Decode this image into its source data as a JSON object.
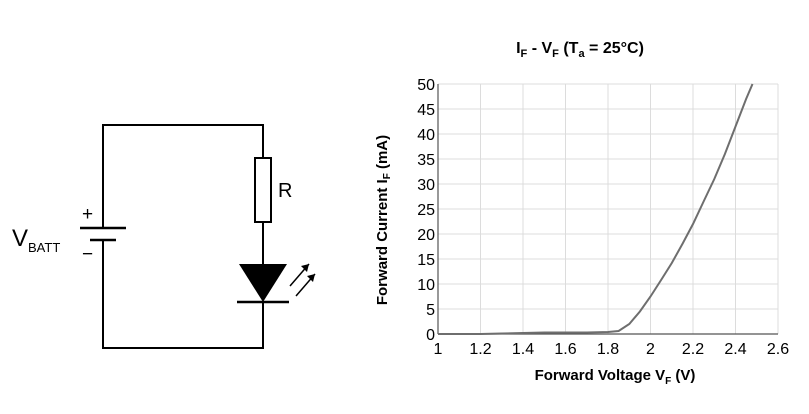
{
  "circuit": {
    "battery_label": "V",
    "battery_subscript": "BATT",
    "plus_sign": "+",
    "minus_sign": "−",
    "resistor_label": "R"
  },
  "chart_data": {
    "type": "line",
    "title_parts": {
      "i": "I",
      "i_sub": "F",
      "sep": " - V",
      "v_sub": "F",
      "open": " (T",
      "t_sub": "a",
      "rest": " = 25°C)"
    },
    "xlabel_main": "Forward Voltage V",
    "xlabel_sub": "F",
    "xlabel_unit": " (V)",
    "ylabel_main": "Forward Current I",
    "ylabel_sub": "F",
    "ylabel_unit": " (mA)",
    "x_ticks": [
      "1",
      "1.2",
      "1.4",
      "1.6",
      "1.8",
      "2",
      "2.2",
      "2.4",
      "2.6"
    ],
    "y_ticks": [
      "0",
      "5",
      "10",
      "15",
      "20",
      "25",
      "30",
      "35",
      "40",
      "45",
      "50"
    ],
    "xlim": [
      1.0,
      2.6
    ],
    "ylim": [
      0,
      50
    ],
    "grid": true,
    "series": [
      {
        "x": [
          1.0,
          1.1,
          1.2,
          1.3,
          1.4,
          1.5,
          1.6,
          1.7,
          1.8,
          1.85,
          1.9,
          1.95,
          2.0,
          2.05,
          2.1,
          2.15,
          2.2,
          2.25,
          2.3,
          2.35,
          2.4,
          2.45,
          2.48
        ],
        "y": [
          0,
          0,
          0,
          0.1,
          0.2,
          0.3,
          0.3,
          0.3,
          0.4,
          0.6,
          2.0,
          4.5,
          7.5,
          10.8,
          14.2,
          18.0,
          22.0,
          26.5,
          31.0,
          36.0,
          41.5,
          47.0,
          50.0
        ]
      }
    ],
    "line_color": "#6e6e6e"
  }
}
